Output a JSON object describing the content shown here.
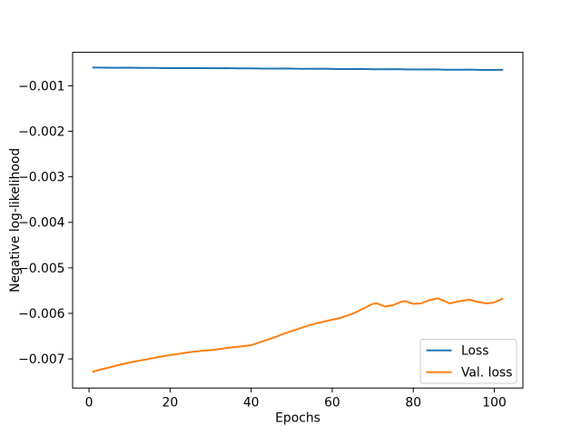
{
  "figure": {
    "background": "#ffffff"
  },
  "chart_data": {
    "type": "line",
    "title": "",
    "xlabel": "Epochs",
    "ylabel": "Negative log-likelihood",
    "grid": false,
    "xlim": [
      -4.05,
      107.05
    ],
    "ylim": [
      -0.00764,
      -0.000265
    ],
    "x_ticks": [
      0,
      20,
      40,
      60,
      80,
      100
    ],
    "x_tick_labels": [
      "0",
      "20",
      "40",
      "60",
      "80",
      "100"
    ],
    "y_ticks": [
      -0.001,
      -0.002,
      -0.003,
      -0.004,
      -0.005,
      -0.006,
      -0.007
    ],
    "y_tick_labels": [
      "−0.001",
      "−0.002",
      "−0.003",
      "−0.004",
      "−0.005",
      "−0.006",
      "−0.007"
    ],
    "legend": {
      "position": "lower right",
      "border_color": "#cccccc",
      "background": "#ffffff"
    },
    "series": [
      {
        "name": "Loss",
        "color": "#1f77b4",
        "x": [
          1,
          4,
          7,
          10,
          13,
          16,
          19,
          22,
          25,
          28,
          31,
          34,
          37,
          40,
          43,
          46,
          49,
          52,
          55,
          58,
          61,
          64,
          67,
          70,
          73,
          76,
          79,
          82,
          85,
          88,
          91,
          94,
          97,
          100,
          102
        ],
        "y": [
          -0.0006,
          -0.000601,
          -0.000604,
          -0.000602,
          -0.000606,
          -0.000608,
          -0.000611,
          -0.000609,
          -0.000613,
          -0.000611,
          -0.000615,
          -0.000613,
          -0.000618,
          -0.000616,
          -0.000621,
          -0.000623,
          -0.00062,
          -0.000626,
          -0.000628,
          -0.000625,
          -0.000631,
          -0.000633,
          -0.00063,
          -0.000636,
          -0.000638,
          -0.000635,
          -0.000641,
          -0.000643,
          -0.00064,
          -0.000646,
          -0.000648,
          -0.000645,
          -0.000651,
          -0.000653,
          -0.00065
        ]
      },
      {
        "name": "Val. loss",
        "color": "#ff7f0e",
        "x": [
          1,
          3,
          5,
          7,
          10,
          13,
          16,
          19,
          22,
          25,
          28,
          31,
          34,
          37,
          40,
          42,
          44,
          46,
          48,
          50,
          52,
          54,
          56,
          58,
          60,
          62,
          64,
          66,
          68,
          70,
          71,
          73,
          75,
          77,
          78,
          80,
          82,
          84,
          86,
          88,
          89,
          91,
          93,
          94,
          96,
          98,
          100,
          102
        ],
        "y": [
          -0.00728,
          -0.00723,
          -0.00719,
          -0.00714,
          -0.00708,
          -0.00703,
          -0.00698,
          -0.00693,
          -0.00689,
          -0.00685,
          -0.00682,
          -0.0068,
          -0.00676,
          -0.00673,
          -0.0067,
          -0.00664,
          -0.00658,
          -0.00652,
          -0.00645,
          -0.00639,
          -0.00633,
          -0.00627,
          -0.00622,
          -0.00618,
          -0.00614,
          -0.0061,
          -0.00604,
          -0.00597,
          -0.00588,
          -0.00579,
          -0.00578,
          -0.00585,
          -0.00582,
          -0.00575,
          -0.00573,
          -0.00579,
          -0.00578,
          -0.00571,
          -0.00567,
          -0.00574,
          -0.00578,
          -0.00574,
          -0.00571,
          -0.0057,
          -0.00575,
          -0.00578,
          -0.00576,
          -0.00568
        ]
      }
    ]
  }
}
